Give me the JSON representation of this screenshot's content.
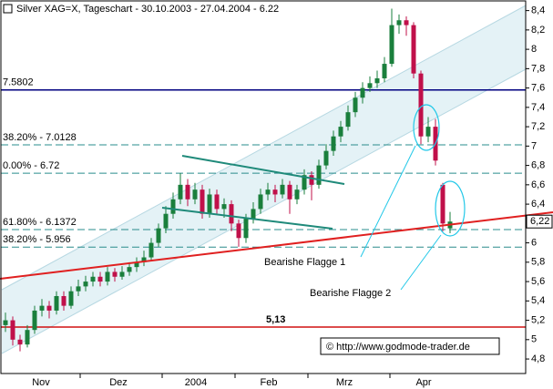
{
  "chart_data": {
    "type": "candlestick",
    "title": "Silver XAG=X, Tageschart - 30.10.2003 - 27.04.2004 - 6.22",
    "open": [
      5.15,
      5.2,
      5.0,
      4.95,
      5.1,
      5.3,
      5.35,
      5.3,
      5.45,
      5.35,
      5.5,
      5.55,
      5.6,
      5.65,
      5.6,
      5.7,
      5.65,
      5.7,
      5.75,
      5.8,
      5.85,
      6.0,
      6.15,
      6.3,
      6.45,
      6.6,
      6.45,
      6.55,
      6.3,
      6.5,
      6.35,
      6.4,
      6.2,
      6.05,
      6.25,
      6.35,
      6.5,
      6.55,
      6.5,
      6.6,
      6.45,
      6.55,
      6.7,
      6.6,
      6.8,
      6.95,
      7.1,
      7.2,
      7.35,
      7.5,
      7.6,
      7.65,
      7.7,
      7.85,
      8.25,
      8.3,
      8.25,
      7.75,
      7.1,
      7.2,
      6.6,
      6.15
    ],
    "high": [
      5.28,
      5.24,
      5.05,
      5.15,
      5.35,
      5.42,
      5.4,
      5.5,
      5.5,
      5.55,
      5.62,
      5.66,
      5.7,
      5.7,
      5.75,
      5.74,
      5.76,
      5.8,
      5.85,
      5.92,
      6.05,
      6.2,
      6.38,
      6.52,
      6.72,
      6.66,
      6.62,
      6.6,
      6.56,
      6.55,
      6.46,
      6.44,
      6.24,
      6.3,
      6.42,
      6.56,
      6.62,
      6.6,
      6.66,
      6.64,
      6.6,
      6.76,
      6.74,
      6.86,
      7.02,
      7.16,
      7.26,
      7.42,
      7.56,
      7.66,
      7.72,
      7.78,
      7.92,
      8.42,
      8.36,
      8.34,
      8.28,
      7.78,
      7.3,
      7.28,
      6.62,
      6.32
    ],
    "low": [
      5.08,
      4.94,
      4.88,
      4.92,
      5.06,
      5.24,
      5.22,
      5.26,
      5.3,
      5.32,
      5.45,
      5.5,
      5.55,
      5.55,
      5.56,
      5.6,
      5.62,
      5.66,
      5.7,
      5.76,
      5.82,
      5.96,
      6.1,
      6.25,
      6.4,
      6.38,
      6.4,
      6.25,
      6.26,
      6.3,
      6.26,
      6.12,
      5.96,
      6.0,
      6.2,
      6.3,
      6.44,
      6.42,
      6.46,
      6.3,
      6.4,
      6.5,
      6.44,
      6.56,
      6.76,
      6.9,
      7.04,
      7.16,
      7.3,
      7.44,
      7.56,
      7.6,
      7.66,
      7.82,
      8.16,
      8.14,
      7.7,
      7.02,
      7.04,
      6.8,
      6.12,
      6.1
    ],
    "close": [
      5.2,
      5.0,
      4.95,
      5.1,
      5.3,
      5.35,
      5.3,
      5.45,
      5.35,
      5.5,
      5.55,
      5.6,
      5.65,
      5.6,
      5.7,
      5.65,
      5.7,
      5.75,
      5.8,
      5.85,
      6.0,
      6.15,
      6.3,
      6.45,
      6.6,
      6.45,
      6.55,
      6.3,
      6.5,
      6.35,
      6.4,
      6.2,
      6.05,
      6.25,
      6.35,
      6.5,
      6.55,
      6.5,
      6.6,
      6.45,
      6.55,
      6.7,
      6.6,
      6.8,
      6.95,
      7.1,
      7.2,
      7.35,
      7.5,
      7.6,
      7.65,
      7.7,
      7.85,
      8.25,
      8.3,
      8.25,
      7.75,
      7.1,
      7.2,
      6.85,
      6.2,
      6.22
    ],
    "up_color": "#1a7f3c",
    "down_color": "#c0104a",
    "ylim": [
      4.65,
      8.5
    ],
    "yticks": [
      {
        "value": 4.8,
        "label": "4,8"
      },
      5,
      {
        "value": 5.2,
        "label": "5,2"
      },
      {
        "value": 5.4,
        "label": "5,4"
      },
      {
        "value": 5.6,
        "label": "5,6"
      },
      {
        "value": 5.8,
        "label": "5,8"
      },
      6,
      {
        "value": 6.2,
        "label": "6,2"
      },
      {
        "value": 6.4,
        "label": "6,4"
      },
      {
        "value": 6.6,
        "label": "6,6"
      },
      {
        "value": 6.8,
        "label": "6,8"
      },
      7,
      {
        "value": 7.2,
        "label": "7,2"
      },
      {
        "value": 7.4,
        "label": "7,4"
      },
      {
        "value": 7.6,
        "label": "7,6"
      },
      {
        "value": 7.8,
        "label": "7,8"
      },
      8,
      {
        "value": 8.2,
        "label": "8,2"
      },
      {
        "value": 8.4,
        "label": "8,4"
      }
    ],
    "x_labels": [
      "Nov",
      "Dez",
      "2004",
      "Feb",
      "Mrz",
      "Apr"
    ],
    "levels": [
      {
        "value": 7.5802,
        "label": "7.5802",
        "color": "#000080",
        "dashed": false
      },
      {
        "value": 7.0128,
        "label": "38.20% - 7.0128",
        "color": "#2a8c8c",
        "dashed": true
      },
      {
        "value": 6.72,
        "label": "0.00% - 6.72",
        "color": "#2a8c8c",
        "dashed": true
      },
      {
        "value": 6.1372,
        "label": "61.80% - 6.1372",
        "color": "#2a8c8c",
        "dashed": true
      },
      {
        "value": 5.956,
        "label": "38.20% - 5.956",
        "color": "#2a8c8c",
        "dashed": true
      },
      {
        "value": 5.13,
        "label": "5,13",
        "color": "#d01010",
        "dashed": false
      }
    ],
    "last_price": {
      "value": 6.22,
      "label": "6,22"
    },
    "annotations": [
      "Bearishe Flagge 1",
      "Bearishe Flagge 2"
    ],
    "copyright": "© http://www.godmode-trader.de"
  }
}
